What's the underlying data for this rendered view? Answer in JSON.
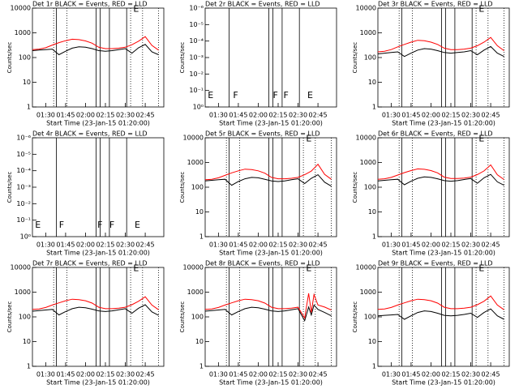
{
  "chart_data": [
    {
      "type": "line",
      "title": "Det 1r BLACK = Events, RED = LLD",
      "xlabel": "Start Time (23-Jan-15 01:20:00)",
      "ylabel": "Counts/sec",
      "log_y": true,
      "xlim": [
        "01:20",
        "02:59"
      ],
      "xticks": [
        "01:30",
        "01:45",
        "02:00",
        "02:15",
        "02:30",
        "02:45"
      ],
      "ylim": [
        1,
        10000
      ],
      "yticks": [
        1,
        10,
        100,
        1000,
        10000
      ],
      "x": [
        "01:20",
        "01:25",
        "01:30",
        "01:35",
        "01:40",
        "01:45",
        "01:50",
        "01:55",
        "02:00",
        "02:05",
        "02:10",
        "02:15",
        "02:20",
        "02:25",
        "02:30",
        "02:35",
        "02:40",
        "02:45",
        "02:50",
        "02:55"
      ],
      "series": [
        {
          "color": "#000000",
          "values": [
            190,
            200,
            210,
            220,
            130,
            180,
            240,
            270,
            260,
            230,
            190,
            180,
            190,
            210,
            230,
            150,
            250,
            340,
            170,
            130
          ]
        },
        {
          "color": "#ff0000",
          "values": [
            210,
            220,
            250,
            320,
            400,
            480,
            550,
            530,
            470,
            380,
            260,
            230,
            230,
            240,
            260,
            330,
            460,
            700,
            310,
            200
          ]
        }
      ],
      "vlines": [
        "01:38",
        "02:08",
        "02:11",
        "02:18",
        "02:31"
      ],
      "dotted_lines": [
        "01:36",
        "01:46",
        "02:34",
        "02:43",
        "02:55"
      ],
      "annotations": [
        {
          "text": "E",
          "x": "02:36",
          "y": 9000
        }
      ]
    },
    {
      "type": "line",
      "title": "Det 2r BLACK = Events, RED = LLD",
      "xlabel": "Start Time (23-Jan-15 01:20:00)",
      "ylabel": "Counts/sec",
      "log_y": true,
      "xlim": [
        "01:20",
        "02:59"
      ],
      "xticks": [
        "01:30",
        "01:45",
        "02:00",
        "02:15",
        "02:30",
        "02:45"
      ],
      "ylim": [
        1,
        1e-06
      ],
      "yticks": [
        {
          "value": 1,
          "label": "10⁰"
        },
        {
          "value": 0.1,
          "label": "10⁻¹"
        },
        {
          "value": 0.01,
          "label": "10⁻²"
        },
        {
          "value": 0.001,
          "label": "10⁻³"
        },
        {
          "value": 0.0001,
          "label": "10⁻⁴"
        },
        {
          "value": 1e-05,
          "label": "10⁻⁵"
        },
        {
          "value": 1e-06,
          "label": "10⁻⁶"
        }
      ],
      "x": [],
      "series": [],
      "vlines": [
        "01:38",
        "02:08",
        "02:11",
        "02:18",
        "02:31"
      ],
      "dotted_lines": [],
      "annotations": [
        {
          "text": "E",
          "x": "01:22",
          "y": 0.2
        },
        {
          "text": "F",
          "x": "01:41",
          "y": 0.2
        },
        {
          "text": "F",
          "x": "02:11",
          "y": 0.2
        },
        {
          "text": "F",
          "x": "02:19",
          "y": 0.2
        },
        {
          "text": "E",
          "x": "02:37",
          "y": 0.2
        }
      ]
    },
    {
      "type": "line",
      "title": "Det 3r BLACK = Events, RED = LLD",
      "xlabel": "Start Time (23-Jan-15 01:20:00)",
      "ylabel": "Counts/sec",
      "log_y": true,
      "xlim": [
        "01:20",
        "02:59"
      ],
      "xticks": [
        "01:30",
        "01:45",
        "02:00",
        "02:15",
        "02:30",
        "02:45"
      ],
      "ylim": [
        1,
        10000
      ],
      "yticks": [
        1,
        10,
        100,
        1000,
        10000
      ],
      "x": [
        "01:20",
        "01:25",
        "01:30",
        "01:35",
        "01:40",
        "01:45",
        "01:50",
        "01:55",
        "02:00",
        "02:05",
        "02:10",
        "02:15",
        "02:20",
        "02:25",
        "02:30",
        "02:35",
        "02:40",
        "02:45",
        "02:50",
        "02:55"
      ],
      "series": [
        {
          "color": "#000000",
          "values": [
            140,
            150,
            160,
            170,
            110,
            150,
            200,
            230,
            220,
            190,
            160,
            150,
            160,
            170,
            190,
            130,
            200,
            280,
            150,
            110
          ]
        },
        {
          "color": "#ff0000",
          "values": [
            170,
            180,
            210,
            270,
            340,
            420,
            500,
            480,
            420,
            340,
            240,
            210,
            210,
            220,
            240,
            300,
            420,
            650,
            300,
            190
          ]
        }
      ],
      "vlines": [
        "01:38",
        "02:08",
        "02:11",
        "02:18",
        "02:31"
      ],
      "dotted_lines": [
        "01:36",
        "01:46",
        "02:34",
        "02:43",
        "02:55"
      ],
      "annotations": [
        {
          "text": "E",
          "x": "02:36",
          "y": 9000
        }
      ]
    },
    {
      "type": "line",
      "title": "Det 4r BLACK = Events, RED = LLD",
      "xlabel": "Start Time (23-Jan-15 01:20:00)",
      "ylabel": "Counts/sec",
      "log_y": true,
      "xlim": [
        "01:20",
        "02:59"
      ],
      "xticks": [
        "01:30",
        "01:45",
        "02:00",
        "02:15",
        "02:30",
        "02:45"
      ],
      "ylim": [
        1,
        1e-06
      ],
      "yticks": [
        {
          "value": 1,
          "label": "10⁰"
        },
        {
          "value": 0.1,
          "label": "10⁻¹"
        },
        {
          "value": 0.01,
          "label": "10⁻²"
        },
        {
          "value": 0.001,
          "label": "10⁻³"
        },
        {
          "value": 0.0001,
          "label": "10⁻⁴"
        },
        {
          "value": 1e-05,
          "label": "10⁻⁵"
        },
        {
          "value": 1e-06,
          "label": "10⁻⁶"
        }
      ],
      "x": [],
      "series": [],
      "vlines": [
        "01:38",
        "02:08",
        "02:11",
        "02:18",
        "02:31"
      ],
      "dotted_lines": [],
      "annotations": [
        {
          "text": "E",
          "x": "01:22",
          "y": 0.2
        },
        {
          "text": "F",
          "x": "01:40",
          "y": 0.2
        },
        {
          "text": "F",
          "x": "02:09",
          "y": 0.2
        },
        {
          "text": "F",
          "x": "02:18",
          "y": 0.2
        },
        {
          "text": "E",
          "x": "02:37",
          "y": 0.2
        }
      ]
    },
    {
      "type": "line",
      "title": "Det 5r BLACK = Events, RED = LLD",
      "xlabel": "Start Time (23-Jan-15 01:20:00)",
      "ylabel": "Counts/sec",
      "log_y": true,
      "xlim": [
        "01:20",
        "02:59"
      ],
      "xticks": [
        "01:30",
        "01:45",
        "02:00",
        "02:15",
        "02:30",
        "02:45"
      ],
      "ylim": [
        1,
        10000
      ],
      "yticks": [
        1,
        10,
        100,
        1000,
        10000
      ],
      "x": [
        "01:20",
        "01:25",
        "01:30",
        "01:35",
        "01:40",
        "01:45",
        "01:50",
        "01:55",
        "02:00",
        "02:05",
        "02:10",
        "02:15",
        "02:20",
        "02:25",
        "02:30",
        "02:35",
        "02:40",
        "02:45",
        "02:50",
        "02:55"
      ],
      "series": [
        {
          "color": "#000000",
          "values": [
            180,
            190,
            200,
            210,
            120,
            170,
            220,
            250,
            240,
            210,
            180,
            170,
            180,
            200,
            220,
            140,
            230,
            320,
            160,
            110
          ]
        },
        {
          "color": "#ff0000",
          "values": [
            200,
            210,
            240,
            300,
            380,
            460,
            540,
            520,
            460,
            370,
            250,
            220,
            220,
            230,
            250,
            320,
            450,
            850,
            330,
            210
          ]
        }
      ],
      "vlines": [
        "01:38",
        "02:08",
        "02:11",
        "02:18",
        "02:31"
      ],
      "dotted_lines": [
        "01:36",
        "01:46",
        "02:34",
        "02:43",
        "02:55"
      ],
      "annotations": [
        {
          "text": "E",
          "x": "02:36",
          "y": 9000
        }
      ]
    },
    {
      "type": "line",
      "title": "Det 6r BLACK = Events, RED = LLD",
      "xlabel": "Start Time (23-Jan-15 01:20:00)",
      "ylabel": "Counts/sec",
      "log_y": true,
      "xlim": [
        "01:20",
        "02:59"
      ],
      "xticks": [
        "01:30",
        "01:45",
        "02:00",
        "02:15",
        "02:30",
        "02:45"
      ],
      "ylim": [
        1,
        10000
      ],
      "yticks": [
        1,
        10,
        100,
        1000,
        10000
      ],
      "x": [
        "01:20",
        "01:25",
        "01:30",
        "01:35",
        "01:40",
        "01:45",
        "01:50",
        "01:55",
        "02:00",
        "02:05",
        "02:10",
        "02:15",
        "02:20",
        "02:25",
        "02:30",
        "02:35",
        "02:40",
        "02:45",
        "02:50",
        "02:55"
      ],
      "series": [
        {
          "color": "#000000",
          "values": [
            180,
            190,
            200,
            210,
            125,
            175,
            230,
            260,
            250,
            220,
            185,
            175,
            185,
            205,
            225,
            145,
            240,
            330,
            165,
            120
          ]
        },
        {
          "color": "#ff0000",
          "values": [
            210,
            220,
            250,
            310,
            390,
            470,
            550,
            530,
            470,
            380,
            255,
            225,
            225,
            235,
            255,
            325,
            455,
            800,
            320,
            205
          ]
        }
      ],
      "vlines": [
        "01:38",
        "02:08",
        "02:11",
        "02:18",
        "02:31"
      ],
      "dotted_lines": [
        "01:36",
        "01:46",
        "02:34",
        "02:43",
        "02:55"
      ],
      "annotations": [
        {
          "text": "E",
          "x": "02:36",
          "y": 9000
        }
      ]
    },
    {
      "type": "line",
      "title": "Det 7r BLACK = Events, RED = LLD",
      "xlabel": "Start Time (23-Jan-15 01:20:00)",
      "ylabel": "Counts/sec",
      "log_y": true,
      "xlim": [
        "01:20",
        "02:59"
      ],
      "xticks": [
        "01:30",
        "01:45",
        "02:00",
        "02:15",
        "02:30",
        "02:45"
      ],
      "ylim": [
        1,
        10000
      ],
      "yticks": [
        1,
        10,
        100,
        1000,
        10000
      ],
      "x": [
        "01:20",
        "01:25",
        "01:30",
        "01:35",
        "01:40",
        "01:45",
        "01:50",
        "01:55",
        "02:00",
        "02:05",
        "02:10",
        "02:15",
        "02:20",
        "02:25",
        "02:30",
        "02:35",
        "02:40",
        "02:45",
        "02:50",
        "02:55"
      ],
      "series": [
        {
          "color": "#000000",
          "values": [
            170,
            180,
            190,
            200,
            120,
            165,
            215,
            245,
            235,
            205,
            175,
            165,
            175,
            195,
            215,
            140,
            225,
            310,
            160,
            115
          ]
        },
        {
          "color": "#ff0000",
          "values": [
            200,
            210,
            240,
            300,
            370,
            450,
            520,
            500,
            450,
            360,
            245,
            215,
            215,
            225,
            245,
            310,
            430,
            650,
            300,
            195
          ]
        }
      ],
      "vlines": [
        "01:38",
        "02:08",
        "02:11",
        "02:18",
        "02:31"
      ],
      "dotted_lines": [
        "01:36",
        "01:46",
        "02:34",
        "02:43",
        "02:55"
      ],
      "annotations": [
        {
          "text": "E",
          "x": "02:36",
          "y": 9000
        }
      ]
    },
    {
      "type": "line",
      "title": "Det 8r BLACK = Events, RED = LLD",
      "xlabel": "Start Time (23-Jan-15 01:20:00)",
      "ylabel": "Counts/sec",
      "log_y": true,
      "xlim": [
        "01:20",
        "02:59"
      ],
      "xticks": [
        "01:30",
        "01:45",
        "02:00",
        "02:15",
        "02:30",
        "02:45"
      ],
      "ylim": [
        1,
        10000
      ],
      "yticks": [
        1,
        10,
        100,
        1000,
        10000
      ],
      "x": [
        "01:20",
        "01:25",
        "01:30",
        "01:35",
        "01:40",
        "01:45",
        "01:50",
        "01:55",
        "02:00",
        "02:05",
        "02:10",
        "02:15",
        "02:20",
        "02:25",
        "02:30",
        "02:35",
        "02:38",
        "02:40",
        "02:42",
        "02:45",
        "02:50",
        "02:55"
      ],
      "series": [
        {
          "color": "#000000",
          "values": [
            170,
            180,
            190,
            200,
            120,
            165,
            215,
            245,
            235,
            205,
            175,
            165,
            175,
            195,
            215,
            70,
            250,
            120,
            300,
            200,
            150,
            110
          ]
        },
        {
          "color": "#ff0000",
          "values": [
            200,
            210,
            240,
            300,
            370,
            450,
            520,
            500,
            450,
            360,
            245,
            215,
            215,
            225,
            245,
            90,
            900,
            150,
            800,
            300,
            250,
            190
          ]
        }
      ],
      "vlines": [
        "01:38",
        "02:08",
        "02:11",
        "02:18",
        "02:31"
      ],
      "dotted_lines": [
        "01:36",
        "01:46",
        "02:34",
        "02:43",
        "02:55"
      ],
      "annotations": [
        {
          "text": "E",
          "x": "02:36",
          "y": 9000
        }
      ]
    },
    {
      "type": "line",
      "title": "Det 9r BLACK = Events, RED = LLD",
      "xlabel": "Start Time (23-Jan-15 01:20:00)",
      "ylabel": "Counts/sec",
      "log_y": true,
      "xlim": [
        "01:20",
        "02:59"
      ],
      "xticks": [
        "01:30",
        "01:45",
        "02:00",
        "02:15",
        "02:30",
        "02:45"
      ],
      "ylim": [
        1,
        10000
      ],
      "yticks": [
        1,
        10,
        100,
        1000,
        10000
      ],
      "x": [
        "01:20",
        "01:25",
        "01:30",
        "01:35",
        "01:40",
        "01:45",
        "01:50",
        "01:55",
        "02:00",
        "02:05",
        "02:10",
        "02:15",
        "02:20",
        "02:25",
        "02:30",
        "02:35",
        "02:40",
        "02:45",
        "02:50",
        "02:55"
      ],
      "series": [
        {
          "color": "#000000",
          "values": [
            110,
            115,
            120,
            125,
            80,
            110,
            150,
            175,
            165,
            140,
            115,
            110,
            115,
            125,
            140,
            95,
            150,
            210,
            110,
            80
          ]
        },
        {
          "color": "#ff0000",
          "values": [
            200,
            210,
            240,
            300,
            370,
            450,
            520,
            500,
            450,
            360,
            245,
            215,
            215,
            225,
            245,
            310,
            430,
            700,
            300,
            195
          ]
        }
      ],
      "vlines": [
        "01:38",
        "02:08",
        "02:11",
        "02:18",
        "02:31"
      ],
      "dotted_lines": [
        "01:36",
        "01:46",
        "02:34",
        "02:43",
        "02:55"
      ],
      "annotations": [
        {
          "text": "E",
          "x": "02:36",
          "y": 9000
        }
      ]
    }
  ]
}
